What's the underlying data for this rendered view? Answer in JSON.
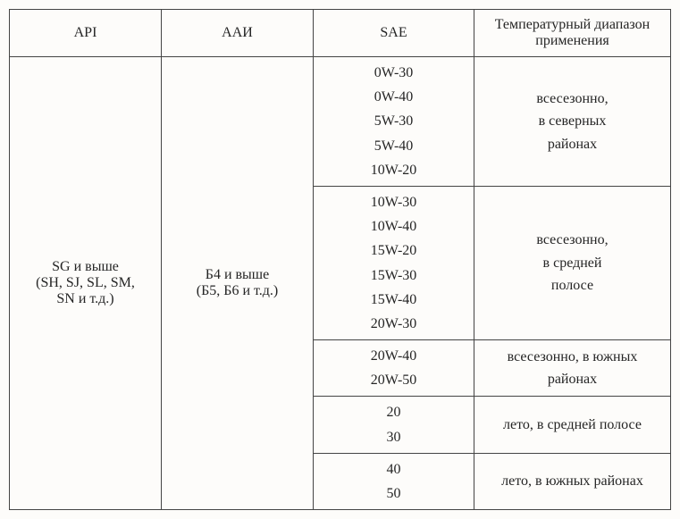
{
  "headers": {
    "api": "API",
    "aai": "ААИ",
    "sae": "SAE",
    "temp": "Температурный диапазон применения"
  },
  "api_cell": {
    "line1": "SG и выше",
    "line2": "(SH, SJ, SL, SM,",
    "line3": "SN и т.д.)"
  },
  "aai_cell": {
    "line1": "Б4 и выше",
    "line2": "(Б5, Б6 и т.д.)"
  },
  "groups": [
    {
      "sae": [
        "0W-30",
        "0W-40",
        "5W-30",
        "5W-40",
        "10W-20"
      ],
      "temp": [
        "всесезонно,",
        "в северных",
        "районах"
      ]
    },
    {
      "sae": [
        "10W-30",
        "10W-40",
        "15W-20",
        "15W-30",
        "15W-40",
        "20W-30"
      ],
      "temp": [
        "всесезонно,",
        "в средней",
        "полосе"
      ]
    },
    {
      "sae": [
        "20W-40",
        "20W-50"
      ],
      "temp": [
        "всесезонно, в южных",
        "районах"
      ]
    },
    {
      "sae": [
        "20",
        "30"
      ],
      "temp": [
        "лето, в средней полосе"
      ]
    },
    {
      "sae": [
        "40",
        "50"
      ],
      "temp": [
        "лето, в южных районах"
      ]
    }
  ]
}
